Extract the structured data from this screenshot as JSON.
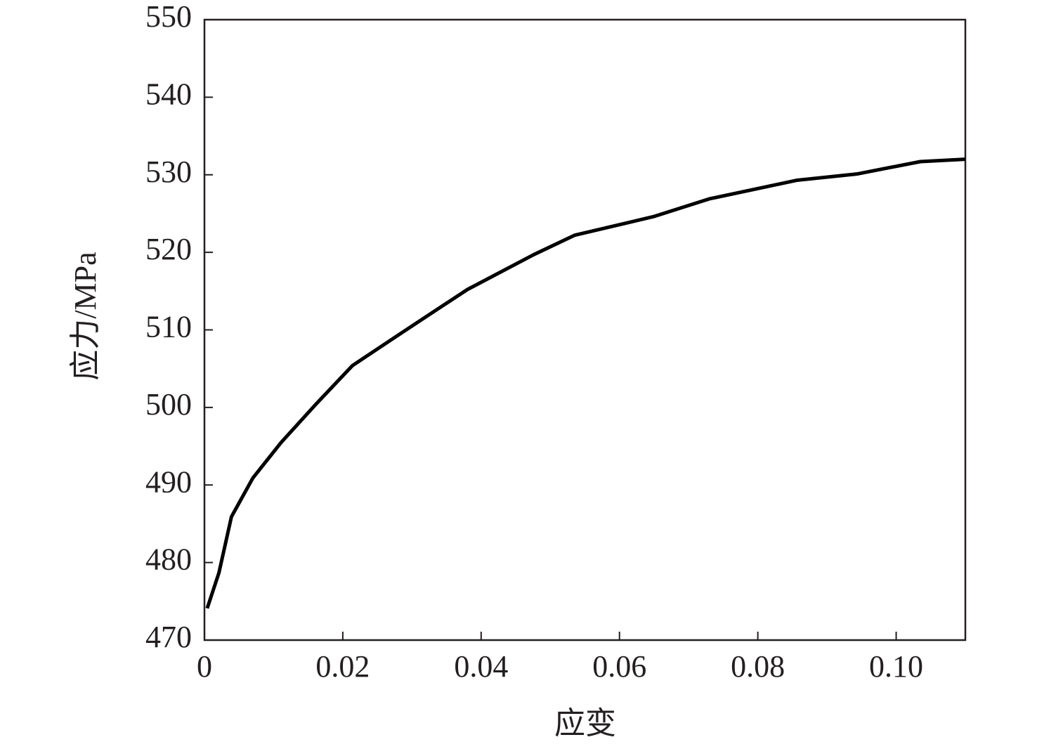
{
  "chart_data": {
    "type": "line",
    "xlabel": "应变",
    "ylabel": "应力/MPa",
    "x": [
      0.0004,
      0.0021,
      0.0039,
      0.007,
      0.0111,
      0.0161,
      0.0214,
      0.0283,
      0.038,
      0.0476,
      0.0535,
      0.0649,
      0.073,
      0.0857,
      0.0943,
      0.1035,
      0.11
    ],
    "series": [
      {
        "color": "#000000",
        "values": [
          474.1,
          478.7,
          485.9,
          490.9,
          495.5,
          500.4,
          505.4,
          509.5,
          515.2,
          519.7,
          522.2,
          524.6,
          526.9,
          529.3,
          530.1,
          531.7,
          532.0
        ]
      }
    ],
    "xlim": [
      0,
      0.11
    ],
    "ylim": [
      470,
      550
    ],
    "xticks": [
      0,
      0.02,
      0.04,
      0.06,
      0.08,
      {
        "value": 0.1,
        "label": "0.10"
      }
    ],
    "yticks": [
      470,
      480,
      490,
      500,
      510,
      520,
      530,
      540,
      550
    ]
  }
}
